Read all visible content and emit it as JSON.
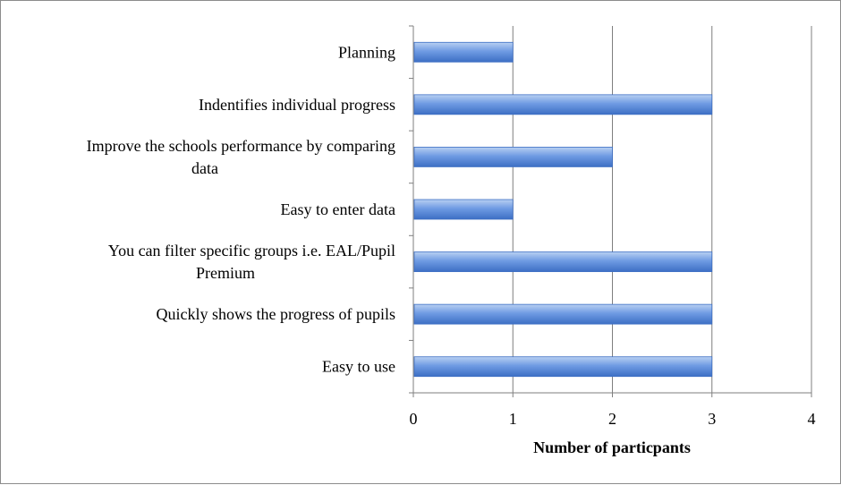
{
  "chart_data": {
    "type": "bar",
    "orientation": "horizontal",
    "categories": [
      [
        "Planning"
      ],
      [
        "Indentifies individual progress"
      ],
      [
        "Improve the schools performance by comparing",
        "data"
      ],
      [
        "Easy to enter data"
      ],
      [
        "You can filter specific groups i.e. EAL/Pupil",
        "Premium"
      ],
      [
        "Quickly shows the progress of pupils"
      ],
      [
        "Easy to use"
      ]
    ],
    "values": [
      1,
      3,
      2,
      1,
      3,
      3,
      3
    ],
    "xticks": [
      "0",
      "1",
      "2",
      "3",
      "4"
    ],
    "xlim": [
      0,
      4
    ],
    "xlabel": "Number of particpants",
    "ylabel": "",
    "title": "",
    "grid": "vertical",
    "legend": "none",
    "colors": {
      "bar_light": "#b8d0f2",
      "bar_mid": "#6f9be3",
      "bar_dark": "#3d6fc4",
      "grid": "#7f7f7f",
      "frame": "#8c8c8c"
    }
  }
}
